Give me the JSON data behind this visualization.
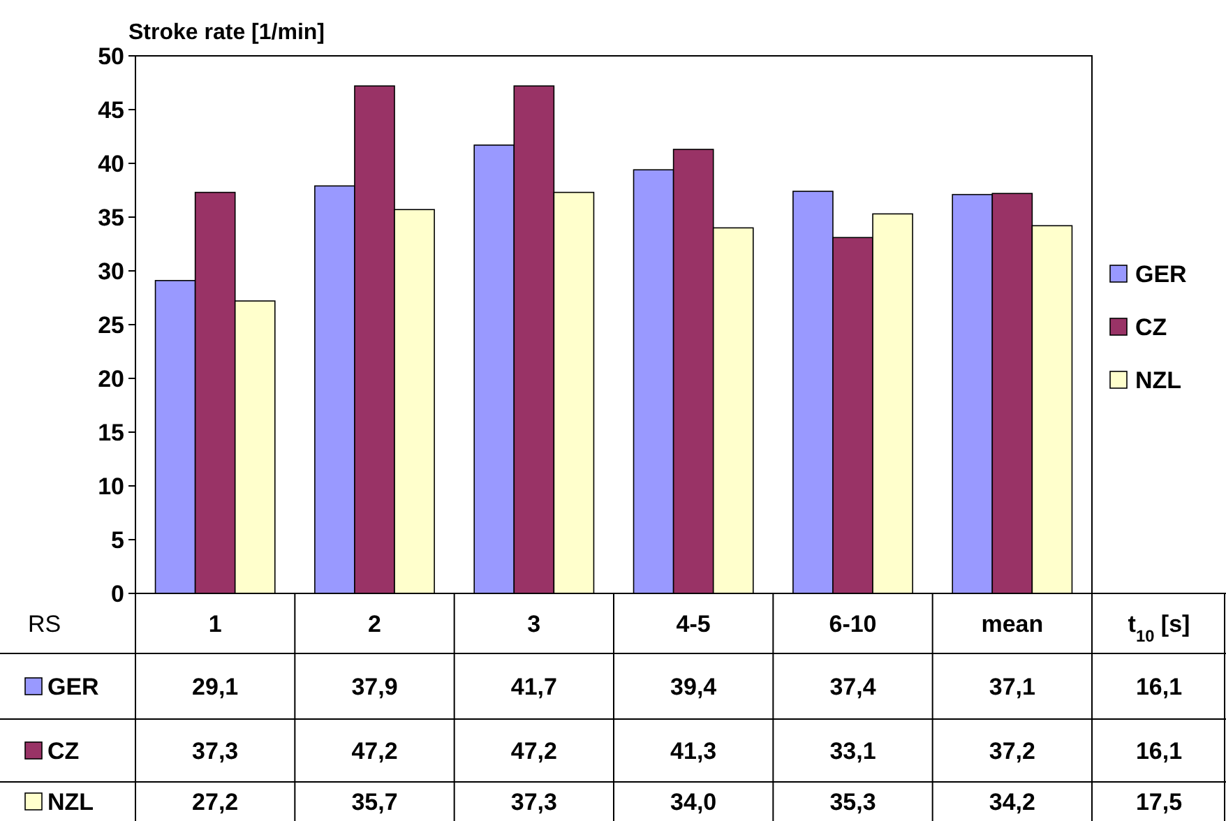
{
  "chart_data": {
    "type": "bar",
    "ylabel": "Stroke rate [1/min]",
    "xlabel": "RS",
    "categories": [
      "1",
      "2",
      "3",
      "4-5",
      "6-10",
      "mean"
    ],
    "series": [
      {
        "name": "GER",
        "color": "#9999ff",
        "values": [
          29.1,
          37.9,
          41.7,
          39.4,
          37.4,
          37.1
        ],
        "value_labels": [
          "29,1",
          "37,9",
          "41,7",
          "39,4",
          "37,4",
          "37,1"
        ]
      },
      {
        "name": "CZ",
        "color": "#993366",
        "values": [
          37.3,
          47.2,
          47.2,
          41.3,
          33.1,
          37.2
        ],
        "value_labels": [
          "37,3",
          "47,2",
          "47,2",
          "41,3",
          "33,1",
          "37,2"
        ]
      },
      {
        "name": "NZL",
        "color": "#ffffcc",
        "values": [
          27.2,
          35.7,
          37.3,
          34.0,
          35.3,
          34.2
        ],
        "value_labels": [
          "27,2",
          "35,7",
          "37,3",
          "34,0",
          "35,3",
          "34,2"
        ]
      }
    ],
    "ylim": [
      0,
      50
    ],
    "yticks": [
      0,
      5,
      10,
      15,
      20,
      25,
      30,
      35,
      40,
      45,
      50
    ],
    "legend": "right",
    "annotations": [
      "t$_{10}$ [s]",
      "16,1",
      "16,1",
      "17,5"
    ]
  }
}
